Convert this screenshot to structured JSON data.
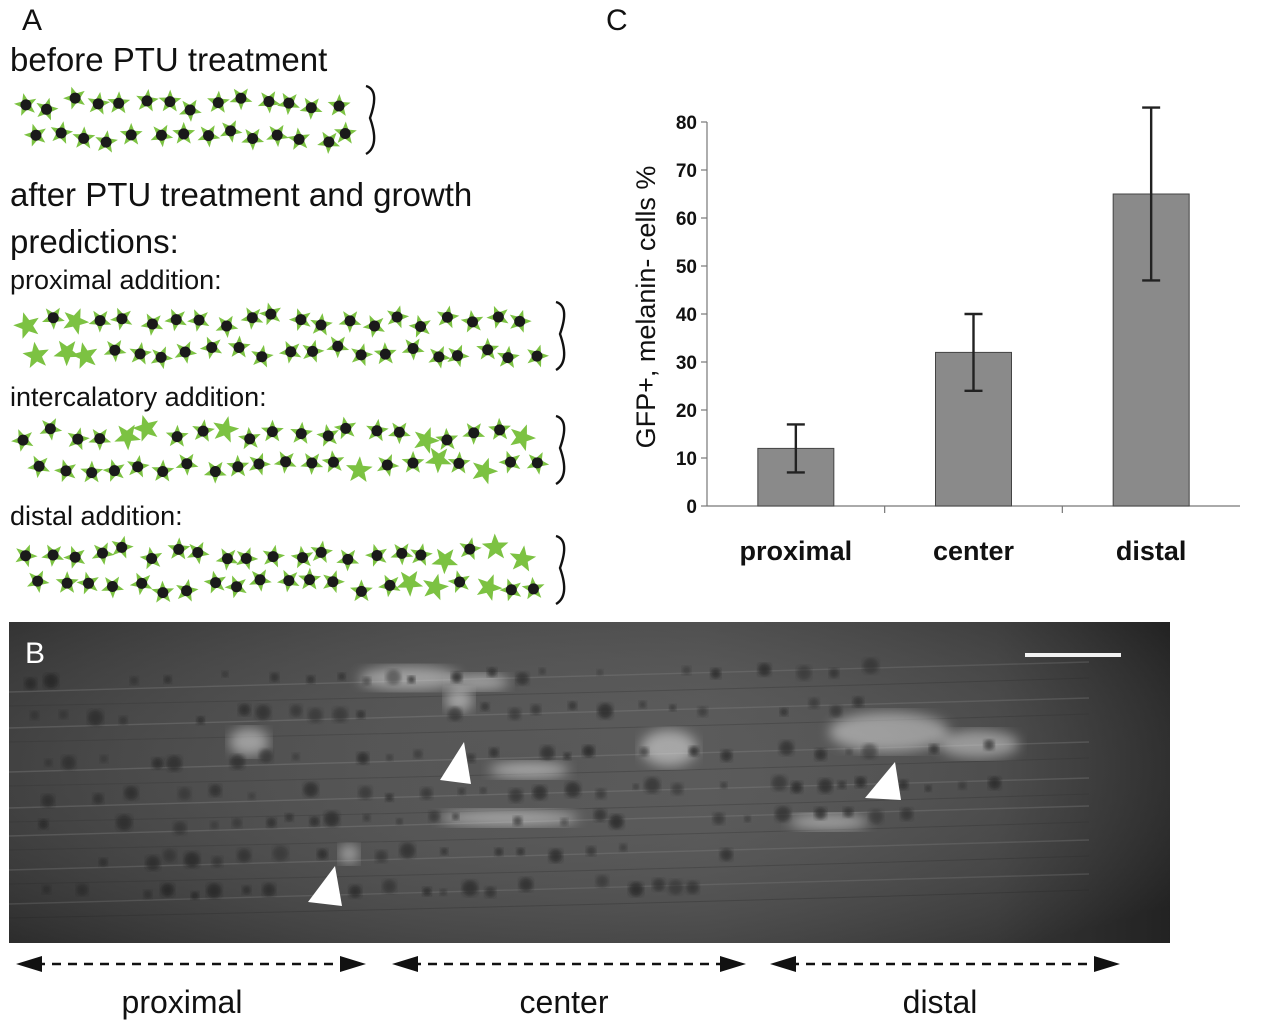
{
  "panels": {
    "a": {
      "letter": "A",
      "before_heading": "before PTU treatment",
      "after_heading_line1": "after PTU treatment and growth",
      "after_heading_line2": "predictions:",
      "rows": [
        {
          "label": "proximal addition:",
          "addition_zone": "proximal"
        },
        {
          "label": "intercalatory addition:",
          "addition_zone": "intercalated"
        },
        {
          "label": "distal addition:",
          "addition_zone": "distal"
        }
      ],
      "colors": {
        "cell_green": "#7cc242",
        "nucleus": "#1a1a1a"
      }
    },
    "b": {
      "letter": "B",
      "region_labels": [
        "proximal",
        "center",
        "distal"
      ]
    },
    "c": {
      "letter": "C"
    }
  },
  "chart_data": {
    "type": "bar",
    "categories": [
      "proximal",
      "center",
      "distal"
    ],
    "values": [
      12,
      32,
      65
    ],
    "error": [
      5,
      8,
      18
    ],
    "title": "",
    "xlabel": "",
    "ylabel": "GFP+, melanin- cells %",
    "ylim": [
      0,
      80
    ],
    "yticks": [
      0,
      10,
      20,
      30,
      40,
      50,
      60,
      70,
      80
    ],
    "bar_color": "#8a8a8a",
    "grid": false
  }
}
